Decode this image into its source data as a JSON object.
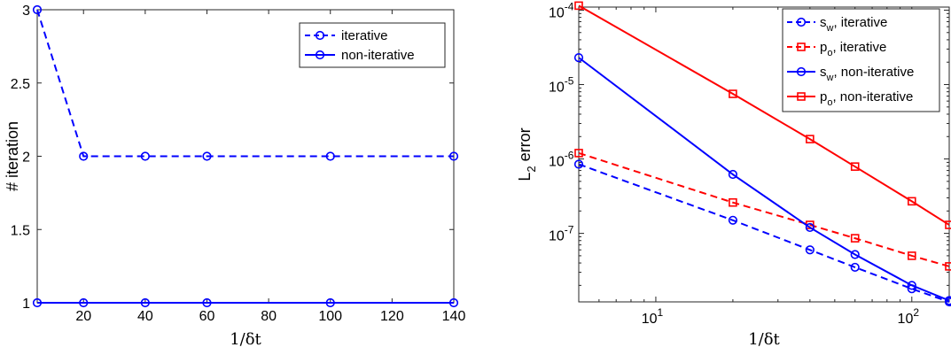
{
  "chart_data": [
    {
      "type": "line",
      "xlabel": "1/δt",
      "ylabel": "# iteration",
      "xlim": [
        5,
        140
      ],
      "ylim": [
        1,
        3
      ],
      "xticks": [
        "20",
        "40",
        "60",
        "80",
        "100",
        "120",
        "140"
      ],
      "yticks": [
        "1",
        "1.5",
        "2",
        "2.5",
        "3"
      ],
      "legend_position": "top-right",
      "x": [
        5,
        20,
        40,
        60,
        100,
        140
      ],
      "series": [
        {
          "name": "iterative",
          "values": [
            3,
            2,
            2,
            2,
            2,
            2
          ],
          "color": "#0000ff",
          "style": "dashed",
          "marker": "circle"
        },
        {
          "name": "non-iterative",
          "values": [
            1,
            1,
            1,
            1,
            1,
            1
          ],
          "color": "#0000ff",
          "style": "solid",
          "marker": "circle"
        }
      ]
    },
    {
      "type": "line",
      "xlabel": "1/δt",
      "ylabel": "L2 error",
      "xscale": "log",
      "yscale": "log",
      "xlim": [
        5,
        140
      ],
      "ylim": [
        1.2e-08,
        0.00011
      ],
      "xticks": [
        {
          "base": "10",
          "exp": "1"
        },
        {
          "base": "10",
          "exp": "2"
        }
      ],
      "yticks": [
        {
          "base": "10",
          "exp": "-7"
        },
        {
          "base": "10",
          "exp": "-6"
        },
        {
          "base": "10",
          "exp": "-5"
        },
        {
          "base": "10",
          "exp": "-4"
        }
      ],
      "legend_position": "top-right",
      "x": [
        5,
        20,
        40,
        60,
        100,
        140
      ],
      "series": [
        {
          "name": {
            "main": "s",
            "sub": "w",
            "rest": ", iterative"
          },
          "values": [
            8.5e-07,
            1.5e-07,
            6e-08,
            3.5e-08,
            1.8e-08,
            1.2e-08
          ],
          "color": "#0000ff",
          "style": "dashed",
          "marker": "circle"
        },
        {
          "name": {
            "main": "p",
            "sub": "o",
            "rest": ", iterative"
          },
          "values": [
            1.2e-06,
            2.6e-07,
            1.3e-07,
            8.6e-08,
            5e-08,
            3.6e-08
          ],
          "color": "#ff0000",
          "style": "dashed",
          "marker": "square"
        },
        {
          "name": {
            "main": "s",
            "sub": "w",
            "rest": ", non-iterative"
          },
          "values": [
            2.3e-05,
            6.2e-07,
            1.2e-07,
            5.2e-08,
            2e-08,
            1.25e-08
          ],
          "color": "#0000ff",
          "style": "solid",
          "marker": "circle"
        },
        {
          "name": {
            "main": "p",
            "sub": "o",
            "rest": ", non-iterative"
          },
          "values": [
            0.000115,
            7.5e-06,
            1.85e-06,
            7.9e-07,
            2.7e-07,
            1.3e-07
          ],
          "color": "#ff0000",
          "style": "solid",
          "marker": "square"
        }
      ]
    }
  ]
}
